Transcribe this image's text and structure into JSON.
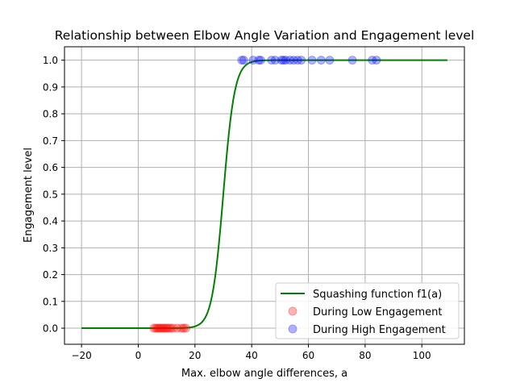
{
  "chart_data": {
    "type": "scatter",
    "title": "Relationship between Elbow Angle Variation and Engagement level",
    "xlabel": "Max. elbow angle differences, a",
    "ylabel": "Engagement level",
    "xlim": [
      -26,
      115
    ],
    "ylim": [
      -0.06,
      1.05
    ],
    "xticks": [
      -20,
      0,
      20,
      40,
      60,
      80,
      100
    ],
    "yticks": [
      0.0,
      0.1,
      0.2,
      0.3,
      0.4,
      0.5,
      0.6,
      0.7,
      0.8,
      0.9,
      1.0
    ],
    "grid": true,
    "legend_position": "lower-right",
    "line": {
      "name": "Squashing function f1(a)",
      "color": "#008000",
      "function": "logistic",
      "midpoint": 30,
      "steepness": 0.5,
      "x_range": [
        -20,
        109
      ]
    },
    "series": [
      {
        "name": "During Low Engagement",
        "color": "#ff0000",
        "y": 0,
        "x": [
          5.5,
          6.2,
          6.8,
          7.3,
          7.9,
          8.5,
          9.0,
          9.6,
          10.2,
          10.8,
          11.5,
          12.3,
          13.7,
          15.2,
          16.0,
          16.8
        ]
      },
      {
        "name": "During High Engagement",
        "color": "#0000ff",
        "y": 1,
        "x": [
          36.5,
          37.2,
          40.5,
          42.5,
          43.2,
          47.0,
          48.3,
          50.5,
          51.2,
          52.0,
          53.5,
          54.8,
          56.2,
          57.5,
          61.3,
          64.5,
          67.5,
          75.5,
          82.5,
          84.0
        ]
      }
    ]
  }
}
